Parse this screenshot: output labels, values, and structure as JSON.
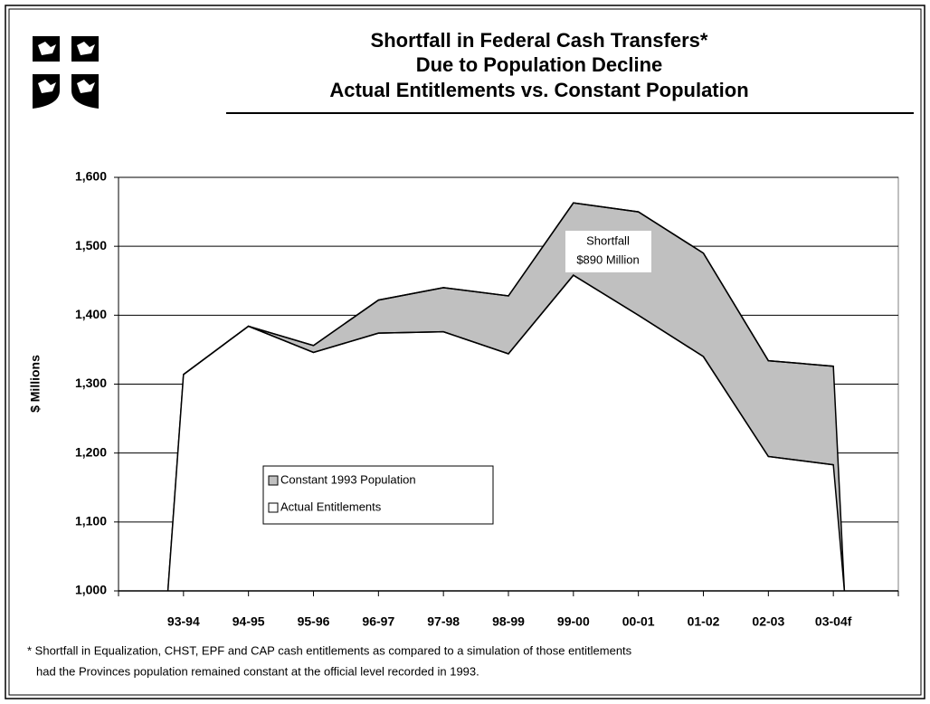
{
  "chart_data": {
    "type": "area",
    "title": [
      "Shortfall in Federal Cash Transfers*",
      "Due to Population Decline",
      "Actual Entitlements vs. Constant Population"
    ],
    "y_label": "$ Millions",
    "categories": [
      "93-94",
      "94-95",
      "95-96",
      "96-97",
      "97-98",
      "98-99",
      "99-00",
      "00-01",
      "01-02",
      "02-03",
      "03-04f"
    ],
    "series": [
      {
        "name": "Constant 1993 Population",
        "color": "#c0c0c0",
        "values": [
          1314,
          1384,
          1356,
          1422,
          1440,
          1428,
          1563,
          1550,
          1490,
          1334,
          1326
        ]
      },
      {
        "name": "Actual Entitlements",
        "color": "#ffffff",
        "values": [
          1314,
          1384,
          1346,
          1374,
          1376,
          1344,
          1458,
          1400,
          1340,
          1195,
          1183
        ]
      }
    ],
    "ylim": [
      1000,
      1600
    ],
    "yticks": [
      {
        "value": 1000,
        "label": "1,000"
      },
      {
        "value": 1100,
        "label": "1,100"
      },
      {
        "value": 1200,
        "label": "1,200"
      },
      {
        "value": 1300,
        "label": "1,300"
      },
      {
        "value": 1400,
        "label": "1,400"
      },
      {
        "value": 1500,
        "label": "1,500"
      },
      {
        "value": 1600,
        "label": "1,600"
      }
    ],
    "grid": true,
    "annotation": [
      "Shortfall",
      "$890 Million"
    ],
    "footnote": [
      "* Shortfall in Equalization, CHST, EPF and CAP cash entitlements as compared to a simulation of those entitlements",
      "had the Provinces population remained constant at the official level recorded in 1993."
    ]
  }
}
